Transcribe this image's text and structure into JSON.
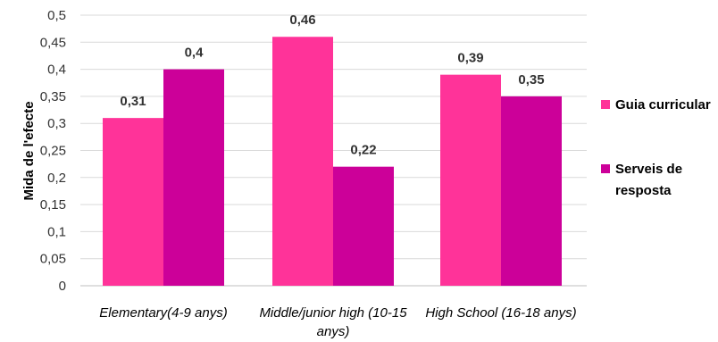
{
  "chart_data": {
    "type": "bar",
    "categories": [
      [
        "Elementary(4-9 anys)"
      ],
      [
        "Middle/junior high (10-15",
        "anys)"
      ],
      [
        "High School (16-18 anys)"
      ]
    ],
    "series": [
      {
        "name": "Guia curricular",
        "values": [
          0.31,
          0.46,
          0.39
        ],
        "color": "#ff3399"
      },
      {
        "name": "Serveis de resposta",
        "values": [
          0.4,
          0.22,
          0.35
        ],
        "color": "#cc0099"
      }
    ],
    "value_labels": [
      [
        "0,31",
        "0,46",
        "0,39"
      ],
      [
        "0,4",
        "0,22",
        "0,35"
      ]
    ],
    "ylabel": "Mida de l'efecte",
    "ylim": [
      0,
      0.5
    ],
    "yticks": [
      "0",
      "0,05",
      "0,1",
      "0,15",
      "0,2",
      "0,25",
      "0,3",
      "0,35",
      "0,4",
      "0,45",
      "0,5"
    ],
    "legend_labels": [
      [
        "Guia curricular"
      ],
      [
        "Serveis de",
        "resposta"
      ]
    ],
    "grid": true,
    "legend_position": "right"
  }
}
